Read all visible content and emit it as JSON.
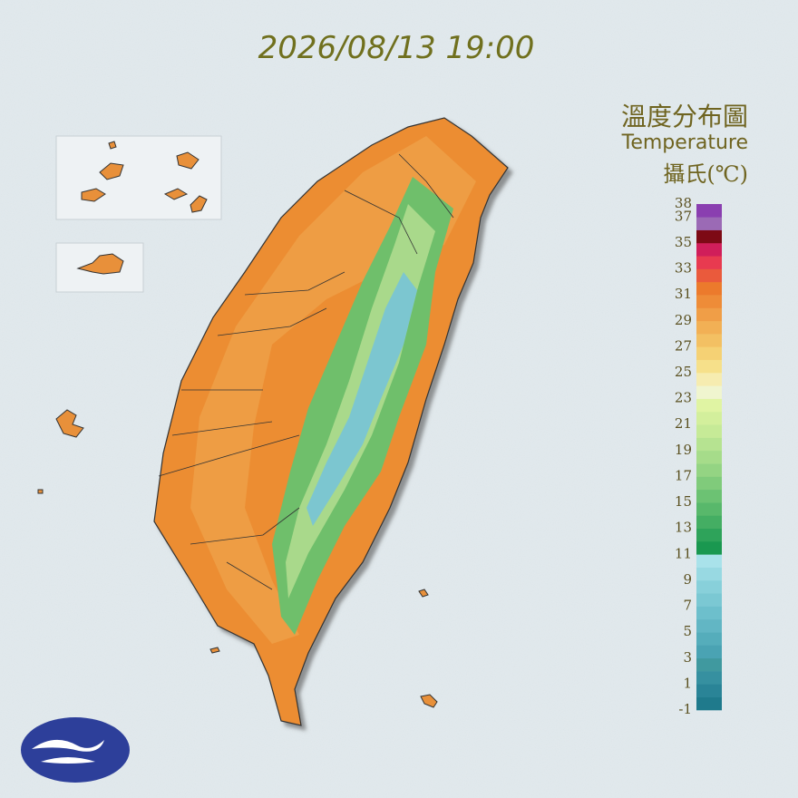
{
  "timestamp": "2026/08/13 19:00",
  "legend": {
    "title": "溫度分布圖",
    "subtitle": "Temperature",
    "unit": "攝氏(℃)",
    "ticks": [
      38,
      37,
      35,
      33,
      31,
      29,
      27,
      25,
      23,
      21,
      19,
      17,
      15,
      13,
      11,
      9,
      7,
      5,
      3,
      1,
      -1
    ],
    "colors": [
      "#1f7a8c",
      "#2a8497",
      "#3690a0",
      "#40999f",
      "#4aa3b3",
      "#55adbb",
      "#62b6c4",
      "#6dbfcc",
      "#7bc8d3",
      "#88d0da",
      "#98d9e2",
      "#a9e2ea",
      "#1a9850",
      "#2ea35a",
      "#44ae63",
      "#58b86b",
      "#6cc273",
      "#80cb7b",
      "#94d483",
      "#a6dc8a",
      "#b6e391",
      "#c6ea97",
      "#d3ef9c",
      "#e0f4a3",
      "#f0f5cf",
      "#f6ecb0",
      "#f6e08a",
      "#f5d174",
      "#f3c063",
      "#f2b055",
      "#f09e47",
      "#ee8c38",
      "#ec7a2c",
      "#ea5a3c",
      "#e83a50",
      "#d01e5a",
      "#7d0a15",
      "#9b6ab5",
      "#8a3fb0"
    ]
  }
}
